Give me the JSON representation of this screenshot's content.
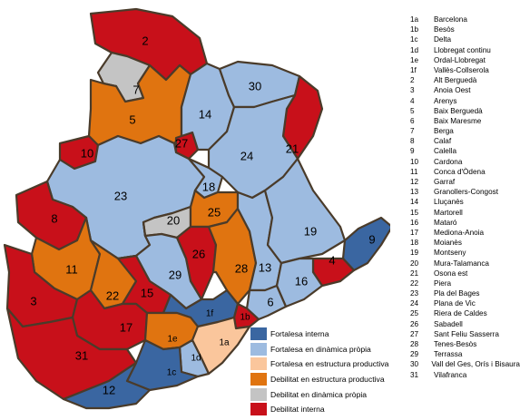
{
  "colors": {
    "fortalesa_interna": "#3a66a1",
    "fortalesa_dinamica": "#9dbbe0",
    "fortalesa_estructura": "#fac69c",
    "debilitat_estructura": "#e07410",
    "debilitat_dinamica": "#c4c4c4",
    "debilitat_interna": "#c8101a",
    "border": "#4a3b2a"
  },
  "legend": [
    {
      "label": "Fortalesa interna",
      "color": "#3a66a1"
    },
    {
      "label": "Fortalesa en dinàmica pròpia",
      "color": "#9dbbe0"
    },
    {
      "label": "Fortalesa en estructura productiva",
      "color": "#fac69c"
    },
    {
      "label": "Debilitat en estructura productiva",
      "color": "#e07410"
    },
    {
      "label": "Debilitat en dinàmica pròpia",
      "color": "#c4c4c4"
    },
    {
      "label": "Debilitat interna",
      "color": "#c8101a"
    }
  ],
  "index": [
    {
      "code": "1a",
      "name": "Barcelona"
    },
    {
      "code": "1b",
      "name": "Besòs"
    },
    {
      "code": "1c",
      "name": "Delta"
    },
    {
      "code": "1d",
      "name": "Llobregat continu"
    },
    {
      "code": "1e",
      "name": "Ordal-Llobregat"
    },
    {
      "code": "1f",
      "name": "Vallès-Collserola"
    },
    {
      "code": "2",
      "name": "Alt Berguedà"
    },
    {
      "code": "3",
      "name": "Anoia Oest"
    },
    {
      "code": "4",
      "name": "Arenys"
    },
    {
      "code": "5",
      "name": "Baix Berguedà"
    },
    {
      "code": "6",
      "name": "Baix Maresme"
    },
    {
      "code": "7",
      "name": "Berga"
    },
    {
      "code": "8",
      "name": "Calaf"
    },
    {
      "code": "9",
      "name": "Calella"
    },
    {
      "code": "10",
      "name": "Cardona"
    },
    {
      "code": "11",
      "name": "Conca d'Òdena"
    },
    {
      "code": "12",
      "name": "Garraf"
    },
    {
      "code": "13",
      "name": "Granollers-Congost"
    },
    {
      "code": "14",
      "name": "Lluçanès"
    },
    {
      "code": "15",
      "name": "Martorell"
    },
    {
      "code": "16",
      "name": "Mataró"
    },
    {
      "code": "17",
      "name": "Mediona-Anoia"
    },
    {
      "code": "18",
      "name": "Moianès"
    },
    {
      "code": "19",
      "name": "Montseny"
    },
    {
      "code": "20",
      "name": "Mura-Talamanca"
    },
    {
      "code": "21",
      "name": "Osona est"
    },
    {
      "code": "22",
      "name": "Piera"
    },
    {
      "code": "23",
      "name": "Pla del Bages"
    },
    {
      "code": "24",
      "name": "Plana de Vic"
    },
    {
      "code": "25",
      "name": "Riera de Caldes"
    },
    {
      "code": "26",
      "name": "Sabadell"
    },
    {
      "code": "27",
      "name": "Sant Feliu Sasserra"
    },
    {
      "code": "28",
      "name": "Tenes-Besòs"
    },
    {
      "code": "29",
      "name": "Terrassa"
    },
    {
      "code": "30",
      "name": "Vall del Ges, Orís i Bisaura"
    },
    {
      "code": "31",
      "name": "Vilafranca"
    }
  ],
  "regions": [
    {
      "code": "2",
      "category": "debilitat_interna"
    },
    {
      "code": "7",
      "category": "debilitat_dinamica"
    },
    {
      "code": "5",
      "category": "debilitat_estructura"
    },
    {
      "code": "10",
      "category": "debilitat_interna"
    },
    {
      "code": "27",
      "category": "debilitat_interna"
    },
    {
      "code": "14",
      "category": "fortalesa_dinamica"
    },
    {
      "code": "30",
      "category": "fortalesa_dinamica"
    },
    {
      "code": "21",
      "category": "debilitat_interna"
    },
    {
      "code": "24",
      "category": "fortalesa_dinamica"
    },
    {
      "code": "23",
      "category": "fortalesa_dinamica"
    },
    {
      "code": "18",
      "category": "fortalesa_dinamica"
    },
    {
      "code": "20",
      "category": "debilitat_dinamica"
    },
    {
      "code": "25",
      "category": "debilitat_estructura"
    },
    {
      "code": "8",
      "category": "debilitat_interna"
    },
    {
      "code": "26",
      "category": "debilitat_interna"
    },
    {
      "code": "29",
      "category": "fortalesa_dinamica"
    },
    {
      "code": "28",
      "category": "debilitat_estructura"
    },
    {
      "code": "13",
      "category": "fortalesa_dinamica"
    },
    {
      "code": "19",
      "category": "fortalesa_dinamica"
    },
    {
      "code": "9",
      "category": "fortalesa_interna"
    },
    {
      "code": "4",
      "category": "debilitat_interna"
    },
    {
      "code": "16",
      "category": "fortalesa_dinamica"
    },
    {
      "code": "6",
      "category": "fortalesa_dinamica"
    },
    {
      "code": "11",
      "category": "debilitat_estructura"
    },
    {
      "code": "22",
      "category": "debilitat_estructura"
    },
    {
      "code": "15",
      "category": "debilitat_interna"
    },
    {
      "code": "3",
      "category": "debilitat_interna"
    },
    {
      "code": "17",
      "category": "debilitat_interna"
    },
    {
      "code": "31",
      "category": "debilitat_interna"
    },
    {
      "code": "1f",
      "category": "fortalesa_interna"
    },
    {
      "code": "1b",
      "category": "debilitat_interna"
    },
    {
      "code": "1e",
      "category": "debilitat_estructura"
    },
    {
      "code": "1a",
      "category": "fortalesa_estructura"
    },
    {
      "code": "1d",
      "category": "fortalesa_dinamica"
    },
    {
      "code": "1c",
      "category": "fortalesa_interna"
    },
    {
      "code": "12",
      "category": "fortalesa_interna"
    }
  ]
}
